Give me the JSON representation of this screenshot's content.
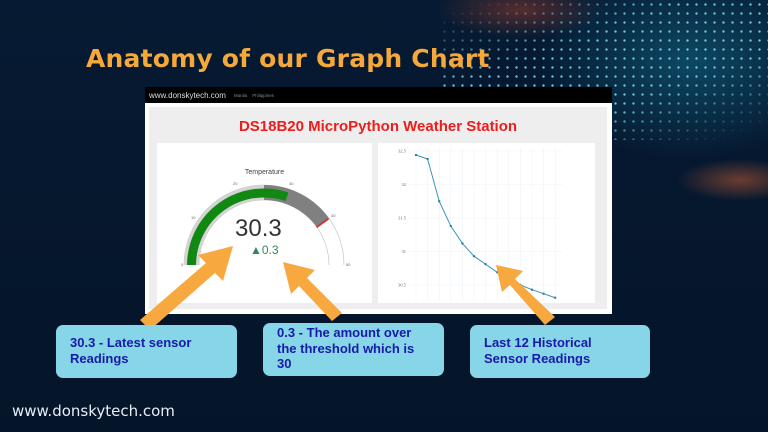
{
  "slide": {
    "title": "Anatomy of our Graph Chart",
    "footer": "www.donskytech.com"
  },
  "browser": {
    "navbar": {
      "brand": "www.donskytech.com",
      "links": [
        "Manila",
        "Philippines"
      ]
    },
    "app_title": "DS18B20 MicroPython Weather Station",
    "gauge": {
      "title": "Temperature",
      "value": "30.3",
      "delta": "▲0.3",
      "min": 0,
      "max": 50,
      "ticks": [
        "0",
        "10",
        "20",
        "30",
        "40",
        "50"
      ],
      "threshold": 30,
      "colors": {
        "bar": "#118811",
        "track": "#d0d0d0",
        "band": "#808080",
        "limit": "#dd2222"
      }
    }
  },
  "callouts": [
    {
      "text": "30.3 - Latest sensor Readings"
    },
    {
      "text": "0.3 - The amount over the threshold which is 30"
    },
    {
      "text": "Last 12 Historical Sensor Readings"
    }
  ],
  "colors": {
    "title": "#f5a93b",
    "callout_bg": "#86d6e8",
    "callout_text": "#1a1aa8",
    "arrow": "#f7a83e",
    "app_title": "#ee1c1c",
    "line": "#3a93b8"
  },
  "chart_data": {
    "type": "line",
    "title": "",
    "xlabel": "",
    "ylabel": "",
    "ylim": [
      30.2,
      32.55
    ],
    "y_ticks": [
      "32.5",
      "32",
      "31.5",
      "31",
      "30.5"
    ],
    "grid": true,
    "x": [
      1,
      2,
      3,
      4,
      5,
      6,
      7,
      8,
      9,
      10,
      11,
      12,
      13
    ],
    "series": [
      {
        "name": "Temperature",
        "values": [
          32.44,
          32.38,
          31.75,
          31.38,
          31.12,
          30.93,
          30.81,
          30.69,
          30.59,
          30.5,
          30.43,
          30.37,
          30.31
        ]
      }
    ]
  }
}
